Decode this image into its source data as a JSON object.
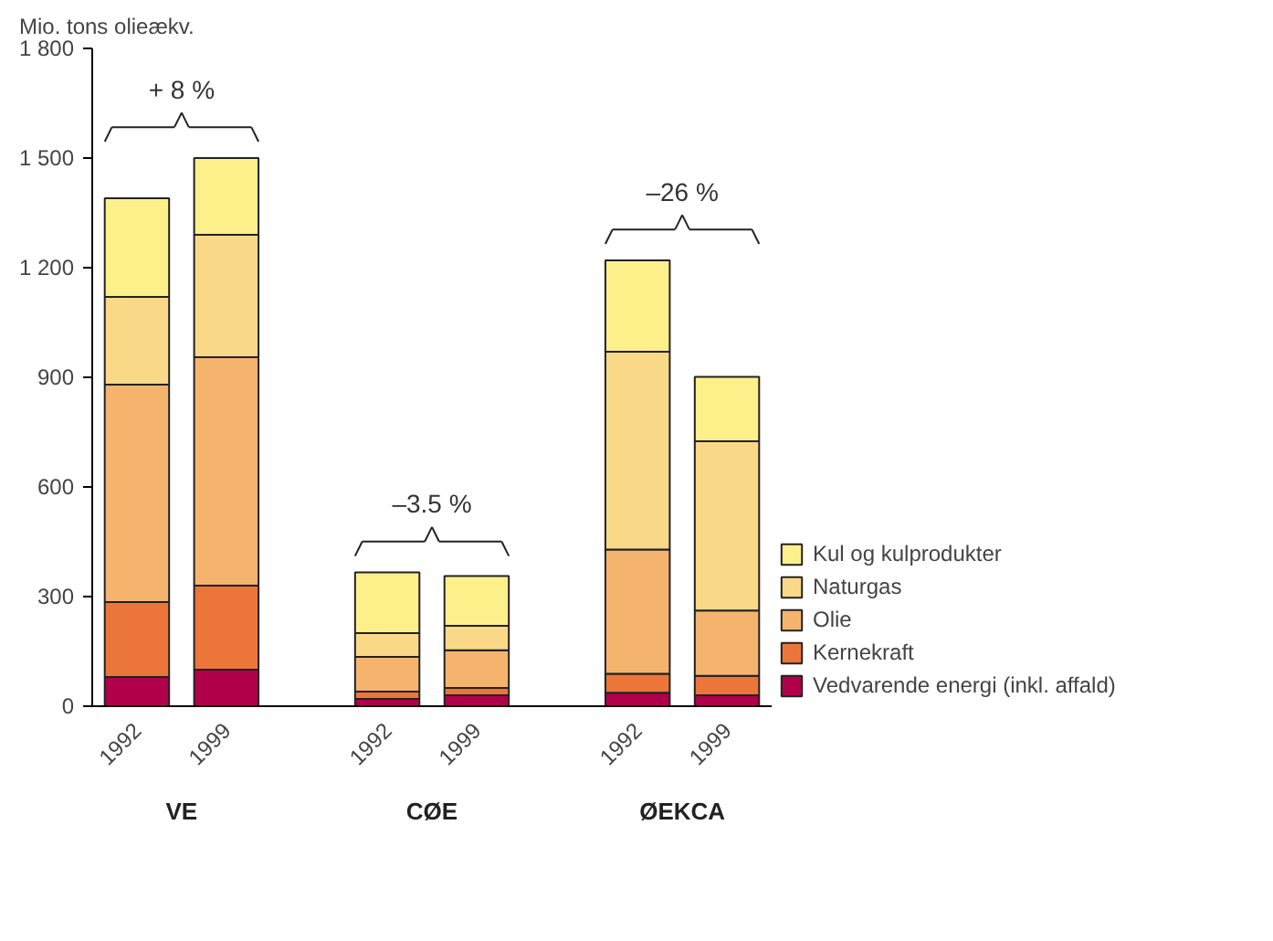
{
  "chart_data": {
    "type": "bar",
    "stacked": true,
    "ylabel": "Mio. tons olieækv.",
    "categories": [
      "1992",
      "1999",
      "1992",
      "1999",
      "1992",
      "1999"
    ],
    "series": [
      {
        "name": "Vedvarende energi (inkl. affald)",
        "color": "#b0004a",
        "values": [
          80,
          100,
          20,
          30,
          37,
          30
        ]
      },
      {
        "name": "Kernekraft",
        "color": "#ec7639",
        "values": [
          205,
          230,
          20,
          20,
          52,
          53
        ]
      },
      {
        "name": "Olie",
        "color": "#f5b46e",
        "values": [
          595,
          625,
          95,
          103,
          340,
          179
        ]
      },
      {
        "name": "Naturgas",
        "color": "#f9d987",
        "values": [
          240,
          335,
          65,
          67,
          541,
          463
        ]
      },
      {
        "name": "Kul og kulprodukter",
        "color": "#fdf08a",
        "values": [
          270,
          210,
          166,
          136,
          250,
          176
        ]
      }
    ],
    "ylim": [
      0,
      1800
    ],
    "yticks": [
      0,
      300,
      600,
      900,
      {
        "value": 1200,
        "label": "1 200"
      },
      {
        "value": 1500,
        "label": "1 500"
      },
      {
        "value": 1800,
        "label": "1 800"
      }
    ],
    "annotations": [
      "+ 8 %",
      "–3.5 %",
      "–26 %",
      "VE",
      "CØE",
      "ØEKCA"
    ],
    "grid": false,
    "legend": "right"
  }
}
